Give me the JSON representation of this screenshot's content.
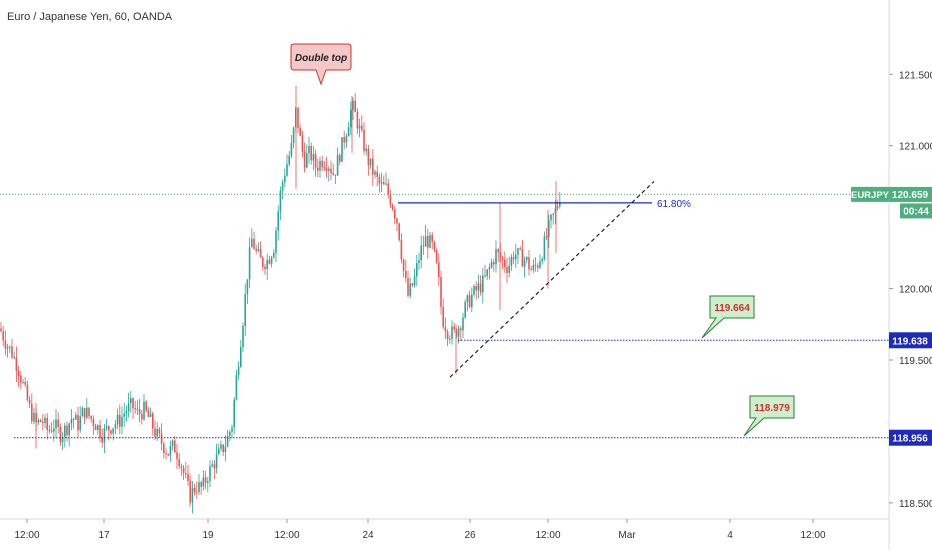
{
  "window": {
    "title": "Euro / Japanese Yen, 60, OANDA"
  },
  "colors": {
    "up": "#26a69a",
    "down": "#ef5350",
    "hline": "#1d2bb8",
    "label_blue": "#1b2ad1",
    "price_tag": "#4caf7d",
    "price_dotted": "#5aa97a",
    "callout_bg": "#f4c8c8",
    "callout_green": "#ccf0cc",
    "callout_red_text": "#d32f2f"
  },
  "chart_data": {
    "type": "candlestick",
    "symbol": "EURJPY",
    "timeframe": "60",
    "ylim": [
      118.45,
      121.95
    ],
    "y_ticks": [
      "121.500",
      "121.000",
      "120.000",
      "119.500",
      "118.500"
    ],
    "x_ticks": [
      "12:00",
      "17",
      "19",
      "12:00",
      "24",
      "26",
      "12:00",
      "Mar",
      "4",
      "12:00"
    ],
    "close_price": 120.659,
    "timer": "00:44",
    "symbol_tag": "EURJPY",
    "horizontal_levels": [
      {
        "price": 119.638,
        "label": "119.638",
        "callout": "119.664"
      },
      {
        "price": 118.956,
        "label": "118.956",
        "callout": "118.979"
      }
    ],
    "fib_level": {
      "price": 120.6,
      "label": "61.80%"
    },
    "annotation": {
      "text": "Double top"
    },
    "trendline": {
      "from_price": 119.38,
      "to_price": 120.75
    },
    "path": [
      [
        0,
        119.72
      ],
      [
        6,
        119.62
      ],
      [
        12,
        119.55
      ],
      [
        18,
        119.45
      ],
      [
        24,
        119.3
      ],
      [
        30,
        119.15
      ],
      [
        36,
        119.05
      ],
      [
        42,
        119.08
      ],
      [
        48,
        119.0
      ],
      [
        54,
        119.05
      ],
      [
        60,
        118.98
      ],
      [
        66,
        119.02
      ],
      [
        72,
        119.1
      ],
      [
        78,
        119.05
      ],
      [
        84,
        119.15
      ],
      [
        90,
        119.1
      ],
      [
        96,
        119.05
      ],
      [
        102,
        118.98
      ],
      [
        108,
        119.02
      ],
      [
        114,
        119.05
      ],
      [
        120,
        119.08
      ],
      [
        126,
        119.15
      ],
      [
        132,
        119.18
      ],
      [
        138,
        119.12
      ],
      [
        144,
        119.15
      ],
      [
        150,
        119.08
      ],
      [
        156,
        118.98
      ],
      [
        162,
        118.92
      ],
      [
        168,
        118.85
      ],
      [
        174,
        118.9
      ],
      [
        180,
        118.8
      ],
      [
        186,
        118.65
      ],
      [
        190,
        118.55
      ],
      [
        196,
        118.62
      ],
      [
        202,
        118.6
      ],
      [
        208,
        118.7
      ],
      [
        214,
        118.78
      ],
      [
        220,
        118.85
      ],
      [
        226,
        118.92
      ],
      [
        232,
        119.05
      ],
      [
        236,
        119.35
      ],
      [
        240,
        119.6
      ],
      [
        244,
        119.85
      ],
      [
        248,
        120.15
      ],
      [
        252,
        120.35
      ],
      [
        256,
        120.25
      ],
      [
        262,
        120.18
      ],
      [
        268,
        120.2
      ],
      [
        274,
        120.3
      ],
      [
        280,
        120.65
      ],
      [
        284,
        120.8
      ],
      [
        288,
        120.9
      ],
      [
        292,
        121.0
      ],
      [
        296,
        121.25
      ],
      [
        300,
        121.05
      ],
      [
        304,
        120.9
      ],
      [
        310,
        120.95
      ],
      [
        316,
        120.85
      ],
      [
        322,
        120.9
      ],
      [
        328,
        120.88
      ],
      [
        334,
        120.8
      ],
      [
        340,
        120.95
      ],
      [
        346,
        121.1
      ],
      [
        352,
        121.28
      ],
      [
        356,
        121.2
      ],
      [
        362,
        121.05
      ],
      [
        368,
        120.9
      ],
      [
        374,
        120.8
      ],
      [
        380,
        120.72
      ],
      [
        386,
        120.7
      ],
      [
        392,
        120.6
      ],
      [
        398,
        120.45
      ],
      [
        404,
        120.1
      ],
      [
        408,
        119.95
      ],
      [
        414,
        120.05
      ],
      [
        420,
        120.25
      ],
      [
        426,
        120.35
      ],
      [
        432,
        120.3
      ],
      [
        438,
        120.1
      ],
      [
        442,
        119.8
      ],
      [
        448,
        119.7
      ],
      [
        454,
        119.68
      ],
      [
        460,
        119.75
      ],
      [
        466,
        119.88
      ],
      [
        472,
        119.95
      ],
      [
        478,
        120.0
      ],
      [
        484,
        120.05
      ],
      [
        490,
        120.15
      ],
      [
        496,
        120.25
      ],
      [
        502,
        120.2
      ],
      [
        508,
        120.15
      ],
      [
        514,
        120.25
      ],
      [
        520,
        120.22
      ],
      [
        526,
        120.2
      ],
      [
        532,
        120.12
      ],
      [
        538,
        120.18
      ],
      [
        544,
        120.3
      ],
      [
        550,
        120.45
      ],
      [
        556,
        120.55
      ],
      [
        560,
        120.66
      ]
    ]
  }
}
